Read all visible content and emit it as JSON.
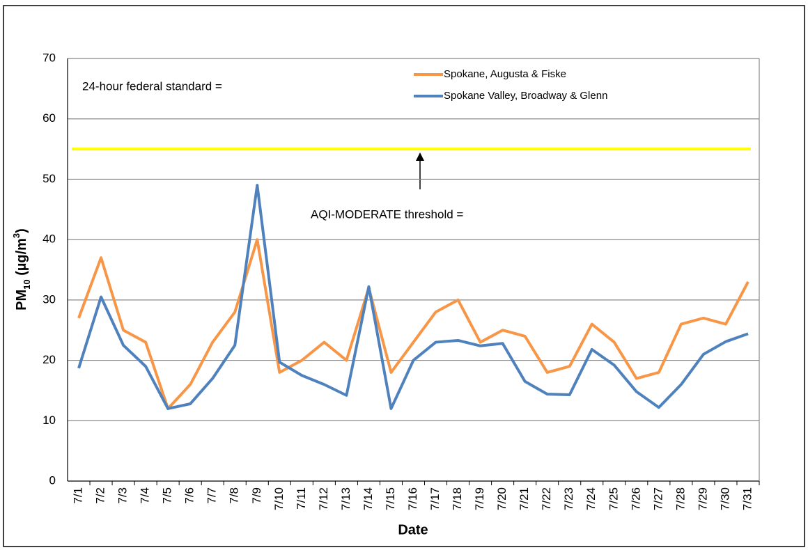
{
  "chart_data": {
    "type": "line",
    "xlabel": "Date",
    "ylabel_parts": [
      "PM",
      "10",
      " (µg/m",
      "3",
      ")"
    ],
    "categories": [
      "7/1",
      "7/2",
      "7/3",
      "7/4",
      "7/5",
      "7/6",
      "7/7",
      "7/8",
      "7/9",
      "7/10",
      "7/11",
      "7/12",
      "7/13",
      "7/14",
      "7/15",
      "7/16",
      "7/17",
      "7/18",
      "7/19",
      "7/20",
      "7/21",
      "7/22",
      "7/23",
      "7/24",
      "7/25",
      "7/26",
      "7/27",
      "7/28",
      "7/29",
      "7/30",
      "7/31"
    ],
    "series": [
      {
        "name": "Spokane, Augusta & Fiske",
        "color": "#f79646",
        "values": [
          27,
          37,
          25,
          23,
          12,
          16,
          23,
          28,
          40,
          18,
          20,
          23,
          20,
          32,
          18,
          23,
          28,
          30,
          23,
          25,
          24,
          18,
          19,
          26,
          23,
          17,
          18,
          26,
          27,
          26,
          33
        ]
      },
      {
        "name": "Spokane Valley, Broadway & Glenn",
        "color": "#4f81bd",
        "values": [
          18.7,
          30.5,
          22.5,
          19,
          12,
          12.8,
          17,
          22.5,
          49,
          19.7,
          17.5,
          16,
          14.2,
          32.2,
          12,
          20,
          23,
          23.3,
          22.4,
          22.8,
          16.5,
          14.4,
          14.3,
          21.8,
          19.2,
          14.8,
          12.2,
          16,
          21,
          23.1,
          24.4
        ]
      }
    ],
    "reference_lines": [
      {
        "value": 55,
        "color": "#ffff00"
      }
    ],
    "annotations": [
      "24-hour federal standard =",
      "AQI-MODERATE threshold ="
    ],
    "ylim": [
      0,
      70
    ],
    "yticks": [
      0,
      10,
      20,
      30,
      40,
      50,
      60,
      70
    ],
    "grid": true
  }
}
